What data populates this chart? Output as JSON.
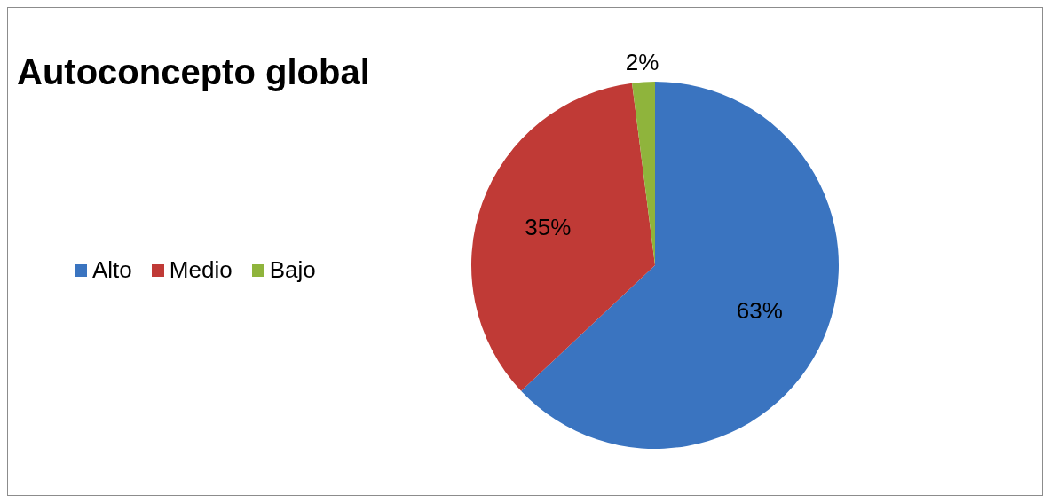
{
  "chart_data": {
    "type": "pie",
    "title": "Autoconcepto global",
    "categories": [
      "Alto",
      "Medio",
      "Bajo"
    ],
    "values": [
      63,
      35,
      2
    ],
    "value_labels": [
      "63%",
      "35%",
      "2%"
    ],
    "colors": [
      "#3a74c0",
      "#c03a36",
      "#8fb43c"
    ],
    "legend": "left"
  }
}
